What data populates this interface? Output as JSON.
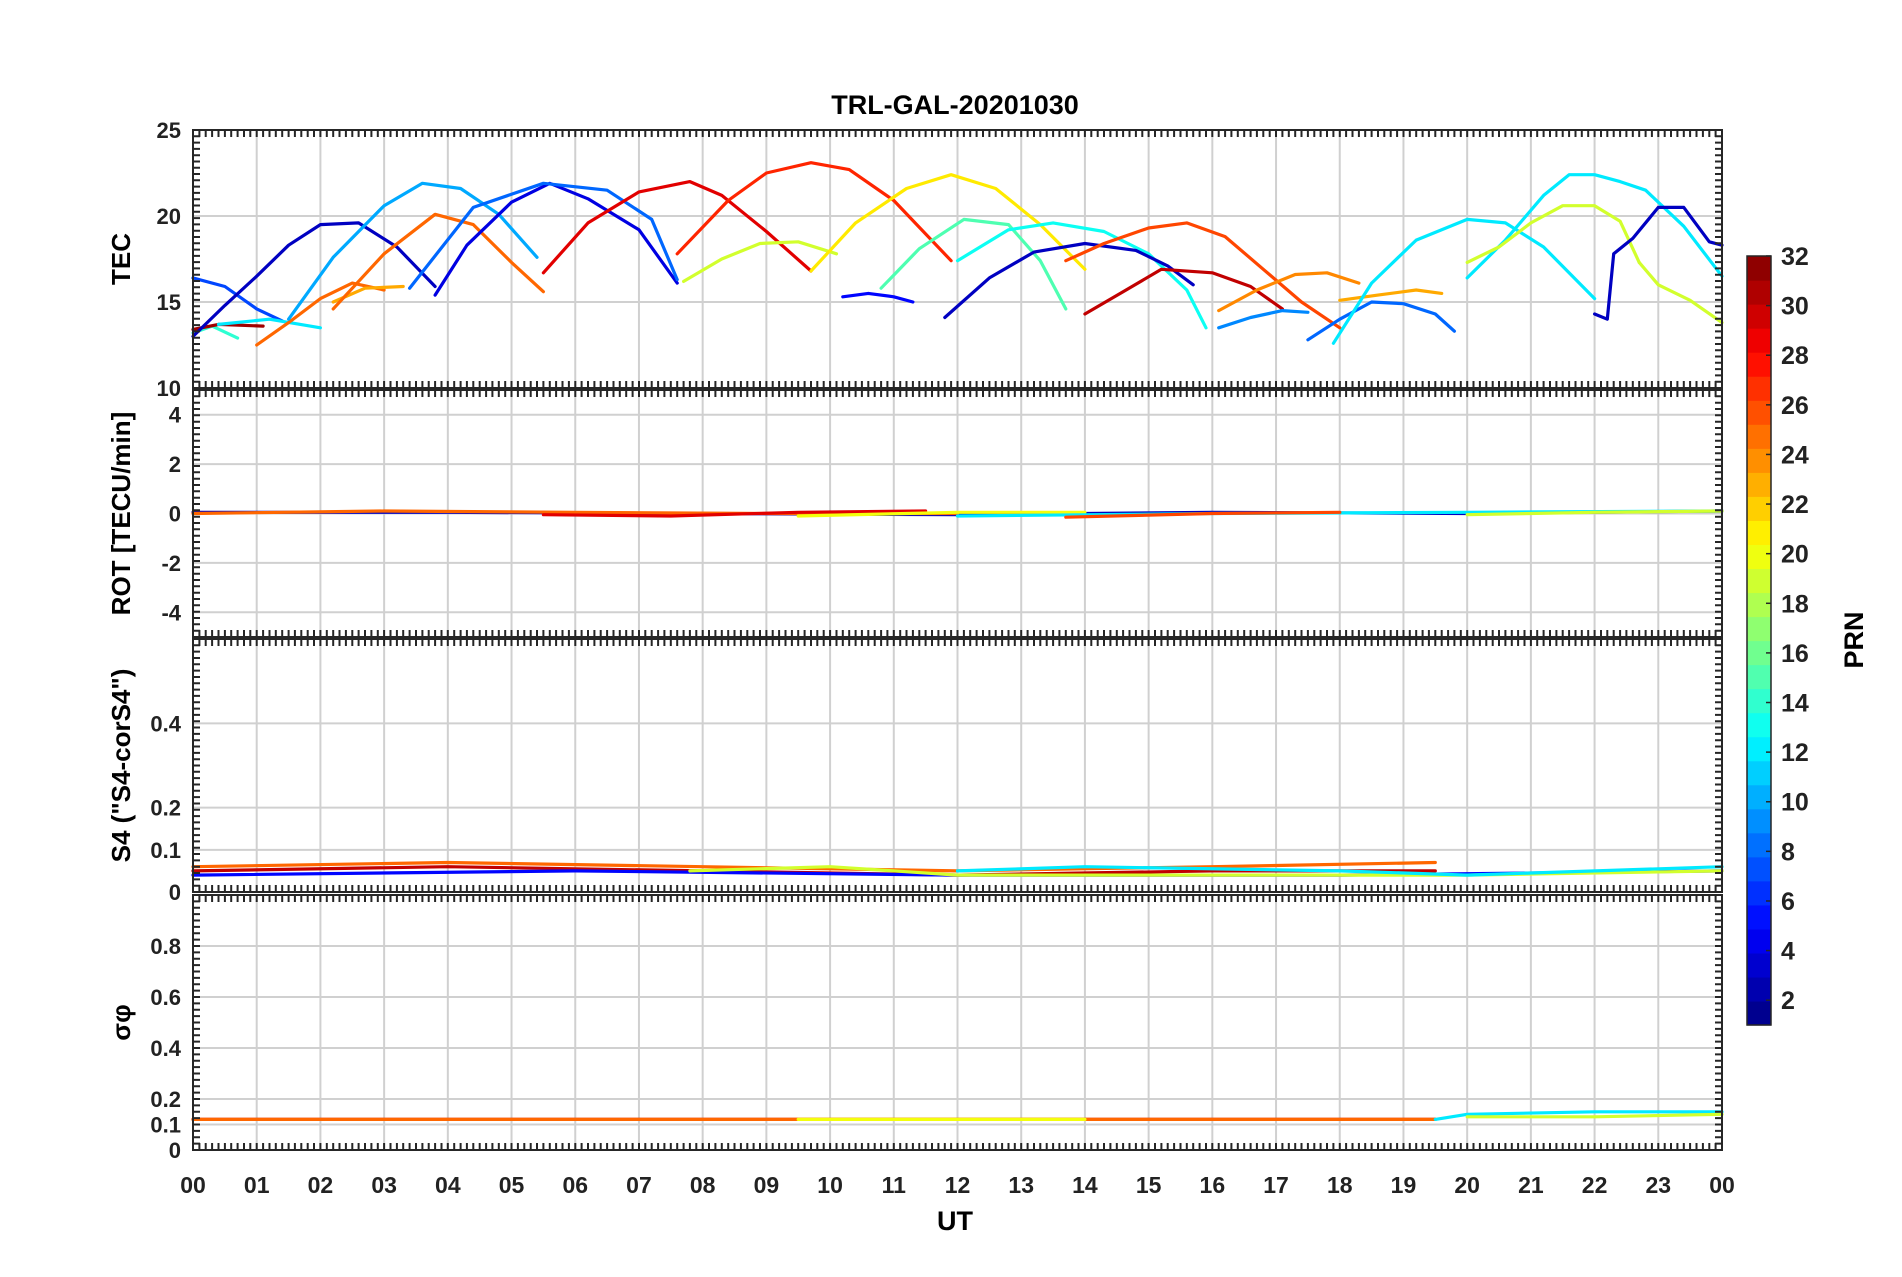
{
  "chart_data": {
    "type": "line",
    "title": "TRL-GAL-20201030",
    "xlabel": "UT",
    "xlim": [
      0,
      24
    ],
    "x_ticks": [
      "00",
      "01",
      "02",
      "03",
      "04",
      "05",
      "06",
      "07",
      "08",
      "09",
      "10",
      "11",
      "12",
      "13",
      "14",
      "15",
      "16",
      "17",
      "18",
      "19",
      "20",
      "21",
      "22",
      "23",
      "00"
    ],
    "grid": true,
    "colorbar": {
      "label": "PRN",
      "range": [
        1,
        32
      ],
      "colormap": "jet",
      "ticks": [
        "2",
        "4",
        "6",
        "8",
        "10",
        "12",
        "14",
        "16",
        "18",
        "20",
        "22",
        "24",
        "26",
        "28",
        "30",
        "32"
      ]
    },
    "panels": [
      {
        "ylabel": "TEC",
        "ylim": [
          10,
          25
        ],
        "y_ticks": [
          "10",
          "15",
          "20",
          "25"
        ],
        "series": [
          {
            "prn": 7,
            "x": [
              0.0,
              0.5,
              1.0,
              1.4
            ],
            "y": [
              16.4,
              15.9,
              14.6,
              13.9
            ]
          },
          {
            "prn": 14,
            "x": [
              0.0,
              0.3,
              0.7
            ],
            "y": [
              13.2,
              13.6,
              12.9
            ]
          },
          {
            "prn": 31,
            "x": [
              0.0,
              0.4,
              1.1
            ],
            "y": [
              13.4,
              13.7,
              13.6
            ]
          },
          {
            "prn": 3,
            "x": [
              0.0,
              0.5,
              1.0,
              1.5,
              2.0,
              2.6,
              3.2,
              3.8
            ],
            "y": [
              13.0,
              14.8,
              16.5,
              18.3,
              19.5,
              19.6,
              18.2,
              15.9
            ]
          },
          {
            "prn": 12,
            "x": [
              0.4,
              1.2,
              2.0
            ],
            "y": [
              13.7,
              14.0,
              13.5
            ]
          },
          {
            "prn": 25,
            "x": [
              1.0,
              1.5,
              2.0,
              2.5,
              3.0
            ],
            "y": [
              12.5,
              13.8,
              15.2,
              16.1,
              15.7
            ]
          },
          {
            "prn": 23,
            "x": [
              2.2,
              2.7,
              3.3
            ],
            "y": [
              15.0,
              15.8,
              15.9
            ]
          },
          {
            "prn": 10,
            "x": [
              1.5,
              2.2,
              3.0,
              3.6,
              4.2,
              4.8,
              5.4
            ],
            "y": [
              14.0,
              17.6,
              20.6,
              21.9,
              21.6,
              20.1,
              17.6
            ]
          },
          {
            "prn": 25,
            "x": [
              2.2,
              3.0,
              3.8,
              4.4,
              5.0,
              5.5
            ],
            "y": [
              14.6,
              17.8,
              20.1,
              19.5,
              17.3,
              15.6
            ]
          },
          {
            "prn": 4,
            "x": [
              3.8,
              4.3,
              5.0,
              5.6,
              6.2,
              7.0,
              7.6
            ],
            "y": [
              15.4,
              18.3,
              20.8,
              21.9,
              21.0,
              19.2,
              16.1
            ]
          },
          {
            "prn": 8,
            "x": [
              3.4,
              4.4,
              5.5,
              6.5,
              7.2,
              7.6
            ],
            "y": [
              15.8,
              20.5,
              21.9,
              21.5,
              19.8,
              16.3
            ]
          },
          {
            "prn": 29,
            "x": [
              5.5,
              6.2,
              7.0,
              7.8,
              8.3,
              9.0,
              9.7
            ],
            "y": [
              16.7,
              19.6,
              21.4,
              22.0,
              21.2,
              19.1,
              16.8
            ]
          },
          {
            "prn": 27,
            "x": [
              7.6,
              8.4,
              9.0,
              9.7,
              10.3,
              11.0,
              11.9
            ],
            "y": [
              17.8,
              20.9,
              22.5,
              23.1,
              22.7,
              20.9,
              17.4
            ]
          },
          {
            "prn": 19,
            "x": [
              7.7,
              8.3,
              8.9,
              9.5,
              10.1
            ],
            "y": [
              16.2,
              17.5,
              18.4,
              18.5,
              17.8
            ]
          },
          {
            "prn": 21,
            "x": [
              9.7,
              10.4,
              11.2,
              11.9,
              12.6,
              13.3,
              14.0
            ],
            "y": [
              16.8,
              19.6,
              21.6,
              22.4,
              21.6,
              19.5,
              16.9
            ]
          },
          {
            "prn": 5,
            "x": [
              10.2,
              10.6,
              11.0,
              11.3
            ],
            "y": [
              15.3,
              15.5,
              15.3,
              15.0
            ]
          },
          {
            "prn": 15,
            "x": [
              10.8,
              11.4,
              12.1,
              12.8,
              13.3,
              13.7
            ],
            "y": [
              15.8,
              18.1,
              19.8,
              19.5,
              17.4,
              14.6
            ]
          },
          {
            "prn": 13,
            "x": [
              12.0,
              12.8,
              13.5,
              14.3,
              15.0,
              15.6,
              15.9
            ],
            "y": [
              17.4,
              19.2,
              19.6,
              19.1,
              17.8,
              15.7,
              13.5
            ]
          },
          {
            "prn": 3,
            "x": [
              11.8,
              12.5,
              13.2,
              14.0,
              14.8,
              15.3,
              15.7
            ],
            "y": [
              14.1,
              16.4,
              17.9,
              18.4,
              18.0,
              17.1,
              16.0
            ]
          },
          {
            "prn": 26,
            "x": [
              13.7,
              14.3,
              15.0,
              15.6,
              16.2,
              16.8,
              17.4,
              18.0
            ],
            "y": [
              17.4,
              18.4,
              19.3,
              19.6,
              18.8,
              16.9,
              15.0,
              13.5
            ]
          },
          {
            "prn": 30,
            "x": [
              14.0,
              14.6,
              15.2,
              16.0,
              16.6,
              17.1
            ],
            "y": [
              14.3,
              15.6,
              16.9,
              16.7,
              15.9,
              14.6
            ]
          },
          {
            "prn": 24,
            "x": [
              16.1,
              16.7,
              17.3,
              17.8,
              18.3
            ],
            "y": [
              14.5,
              15.7,
              16.6,
              16.7,
              16.1
            ]
          },
          {
            "prn": 9,
            "x": [
              16.1,
              16.6,
              17.1,
              17.5
            ],
            "y": [
              13.5,
              14.1,
              14.5,
              14.4
            ]
          },
          {
            "prn": 23,
            "x": [
              18.0,
              18.6,
              19.2,
              19.6
            ],
            "y": [
              15.1,
              15.4,
              15.7,
              15.5
            ]
          },
          {
            "prn": 8,
            "x": [
              17.5,
              18.0,
              18.5,
              19.0,
              19.5,
              19.8
            ],
            "y": [
              12.8,
              14.0,
              15.0,
              14.9,
              14.3,
              13.3
            ]
          },
          {
            "prn": 12,
            "x": [
              17.9,
              18.5,
              19.2,
              20.0,
              20.6,
              21.2,
              22.0
            ],
            "y": [
              12.6,
              16.1,
              18.6,
              19.8,
              19.6,
              18.2,
              15.2
            ]
          },
          {
            "prn": 12,
            "x": [
              20.0,
              20.6,
              21.2,
              21.6,
              22.0,
              22.4,
              22.8,
              23.4,
              24.0
            ],
            "y": [
              16.4,
              18.6,
              21.2,
              22.4,
              22.4,
              22.0,
              21.5,
              19.4,
              16.5
            ]
          },
          {
            "prn": 19,
            "x": [
              20.0,
              20.5,
              21.0,
              21.5,
              22.0,
              22.4,
              22.7
            ],
            "y": [
              17.3,
              18.2,
              19.6,
              20.6,
              20.6,
              19.7,
              17.3
            ]
          },
          {
            "prn": 19,
            "x": [
              22.7,
              23.0,
              23.5,
              24.0
            ],
            "y": [
              17.3,
              16.0,
              15.1,
              13.8
            ]
          },
          {
            "prn": 3,
            "x": [
              22.0,
              22.2,
              22.3,
              22.6,
              23.0,
              23.4,
              23.8,
              24.0
            ],
            "y": [
              14.3,
              14.0,
              17.8,
              18.7,
              20.5,
              20.5,
              18.5,
              18.3
            ]
          }
        ]
      },
      {
        "ylabel": "ROT [TECU/min]",
        "ylim": [
          -5,
          5
        ],
        "y_ticks": [
          "-4",
          "-2",
          "0",
          "2",
          "4"
        ],
        "series": [
          {
            "prn": 3,
            "x": [
              0.0,
              4.0,
              8.0,
              12.0,
              16.0,
              20.0,
              24.0
            ],
            "y": [
              0.05,
              0.05,
              0.0,
              -0.05,
              0.05,
              0.0,
              0.1
            ]
          },
          {
            "prn": 25,
            "x": [
              0.0,
              3.0,
              6.0,
              9.0,
              12.0
            ],
            "y": [
              0.0,
              0.1,
              0.05,
              0.0,
              0.0
            ]
          },
          {
            "prn": 29,
            "x": [
              5.5,
              7.5,
              9.5,
              11.5
            ],
            "y": [
              -0.05,
              -0.1,
              0.05,
              0.1
            ]
          },
          {
            "prn": 20,
            "x": [
              9.5,
              12.0,
              14.0
            ],
            "y": [
              -0.1,
              0.05,
              0.05
            ]
          },
          {
            "prn": 12,
            "x": [
              12.0,
              16.0,
              20.0,
              24.0
            ],
            "y": [
              -0.1,
              0.0,
              0.05,
              0.1
            ]
          },
          {
            "prn": 26,
            "x": [
              13.7,
              16.0,
              18.0
            ],
            "y": [
              -0.15,
              0.0,
              0.05
            ]
          },
          {
            "prn": 19,
            "x": [
              20.0,
              22.0,
              24.0
            ],
            "y": [
              -0.05,
              0.05,
              0.1
            ]
          }
        ]
      },
      {
        "ylabel": "S4 (\"S4-corS4\")",
        "ylim": [
          0,
          0.6
        ],
        "y_ticks": [
          "0",
          "0.1",
          "0.2",
          "0.4"
        ],
        "series": [
          {
            "prn": 30,
            "x": [
              0.0,
              4.0,
              8.0,
              12.0,
              16.0,
              19.5
            ],
            "y": [
              0.05,
              0.06,
              0.05,
              0.04,
              0.05,
              0.05
            ]
          },
          {
            "prn": 25,
            "x": [
              0.0,
              4.0,
              8.0,
              12.0,
              16.0,
              19.5
            ],
            "y": [
              0.06,
              0.07,
              0.06,
              0.05,
              0.06,
              0.07
            ]
          },
          {
            "prn": 5,
            "x": [
              0.0,
              6.0,
              12.0,
              18.0,
              24.0
            ],
            "y": [
              0.04,
              0.05,
              0.04,
              0.04,
              0.05
            ]
          },
          {
            "prn": 19,
            "x": [
              7.8,
              10.0,
              12.0,
              14.0,
              20.0,
              24.0
            ],
            "y": [
              0.05,
              0.06,
              0.04,
              0.04,
              0.04,
              0.05
            ]
          },
          {
            "prn": 12,
            "x": [
              12.0,
              14.0,
              18.0,
              20.0,
              24.0
            ],
            "y": [
              0.05,
              0.06,
              0.05,
              0.04,
              0.06
            ]
          }
        ]
      },
      {
        "ylabel": "σφ",
        "ylim": [
          0,
          1
        ],
        "y_ticks": [
          "0",
          "0.1",
          "0.2",
          "0.4",
          "0.6",
          "0.8"
        ],
        "series": [
          {
            "prn": 30,
            "x": [
              0.0,
              4.0,
              8.0,
              12.0,
              16.0,
              19.5
            ],
            "y": [
              0.12,
              0.12,
              0.12,
              0.12,
              0.12,
              0.12
            ]
          },
          {
            "prn": 25,
            "x": [
              0.0,
              4.0,
              8.0,
              12.0,
              16.0,
              19.5
            ],
            "y": [
              0.12,
              0.12,
              0.12,
              0.12,
              0.12,
              0.12
            ]
          },
          {
            "prn": 20,
            "x": [
              9.5,
              12.0,
              14.0
            ],
            "y": [
              0.12,
              0.12,
              0.12
            ]
          },
          {
            "prn": 12,
            "x": [
              19.5,
              20.0,
              22.0,
              24.0
            ],
            "y": [
              0.12,
              0.14,
              0.15,
              0.15
            ]
          },
          {
            "prn": 19,
            "x": [
              20.0,
              22.0,
              24.0
            ],
            "y": [
              0.13,
              0.13,
              0.14
            ]
          }
        ]
      }
    ]
  }
}
